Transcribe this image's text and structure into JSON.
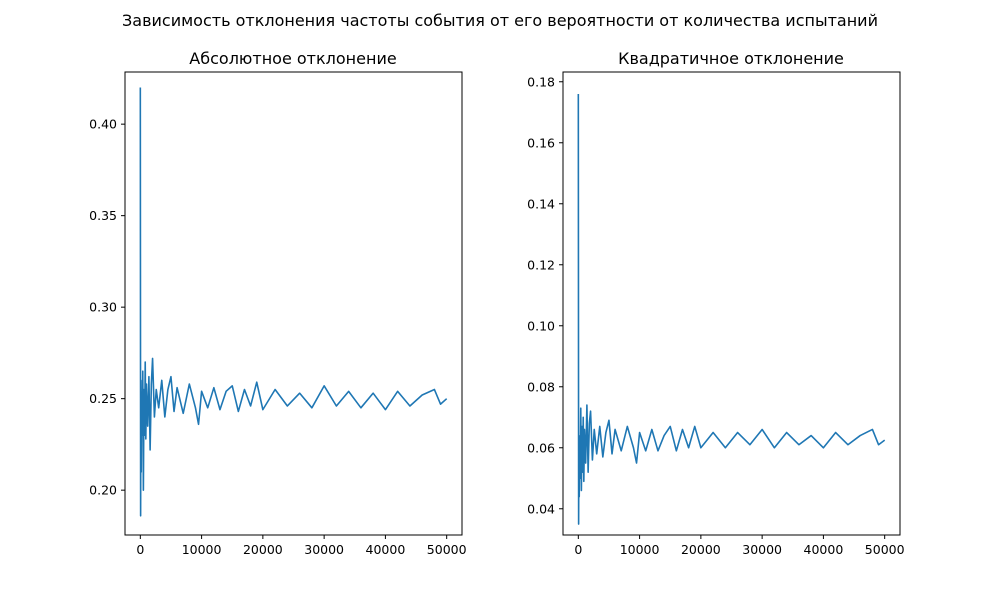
{
  "figure": {
    "title": "Зависимость отклонения частоты события от его вероятности от количества испытаний",
    "colors": {
      "series": "#1f77b4",
      "axes": "#000000",
      "background": "#ffffff"
    }
  },
  "chart_data": [
    {
      "type": "line",
      "title": "Абсолютное отклонение",
      "xlabel": "",
      "ylabel": "",
      "xlim": [
        -2500,
        52500
      ],
      "ylim": [
        0.1755,
        0.4285
      ],
      "x_ticks": [
        0,
        10000,
        20000,
        30000,
        40000,
        50000
      ],
      "y_ticks": [
        0.2,
        0.25,
        0.3,
        0.35,
        0.4
      ],
      "x_tick_labels": [
        "0",
        "10000",
        "20000",
        "30000",
        "40000",
        "50000"
      ],
      "y_tick_labels": [
        "0.20",
        "0.25",
        "0.30",
        "0.35",
        "0.40"
      ],
      "grid": false,
      "series": [
        {
          "color": "#1f77b4",
          "x": [
            0,
            50,
            100,
            150,
            200,
            300,
            400,
            500,
            600,
            700,
            800,
            900,
            1000,
            1200,
            1400,
            1600,
            1800,
            2000,
            2300,
            2600,
            3000,
            3500,
            4000,
            4500,
            5000,
            5500,
            6000,
            7000,
            8000,
            9000,
            9500,
            10000,
            11000,
            12000,
            13000,
            14000,
            15000,
            16000,
            17000,
            18000,
            19000,
            20000,
            22000,
            24000,
            26000,
            28000,
            30000,
            32000,
            34000,
            36000,
            38000,
            40000,
            42000,
            44000,
            46000,
            48000,
            49000,
            50000
          ],
          "values": [
            0.42,
            0.186,
            0.26,
            0.21,
            0.245,
            0.23,
            0.265,
            0.2,
            0.255,
            0.23,
            0.27,
            0.228,
            0.258,
            0.235,
            0.262,
            0.222,
            0.258,
            0.272,
            0.24,
            0.255,
            0.245,
            0.26,
            0.24,
            0.255,
            0.262,
            0.243,
            0.256,
            0.242,
            0.258,
            0.245,
            0.236,
            0.254,
            0.245,
            0.256,
            0.244,
            0.254,
            0.257,
            0.243,
            0.255,
            0.246,
            0.259,
            0.244,
            0.255,
            0.246,
            0.253,
            0.245,
            0.257,
            0.246,
            0.254,
            0.245,
            0.253,
            0.244,
            0.254,
            0.246,
            0.252,
            0.255,
            0.247,
            0.25
          ]
        }
      ]
    },
    {
      "type": "line",
      "title": "Квадратичное отклонение",
      "xlabel": "",
      "ylabel": "",
      "xlim": [
        -2500,
        52500
      ],
      "ylim": [
        0.0314,
        0.1832
      ],
      "x_ticks": [
        0,
        10000,
        20000,
        30000,
        40000,
        50000
      ],
      "y_ticks": [
        0.04,
        0.06,
        0.08,
        0.1,
        0.12,
        0.14,
        0.16,
        0.18
      ],
      "x_tick_labels": [
        "0",
        "10000",
        "20000",
        "30000",
        "40000",
        "50000"
      ],
      "y_tick_labels": [
        "0.04",
        "0.06",
        "0.08",
        "0.10",
        "0.12",
        "0.14",
        "0.16",
        "0.18"
      ],
      "grid": false,
      "series": [
        {
          "color": "#1f77b4",
          "x": [
            0,
            50,
            100,
            150,
            200,
            300,
            400,
            500,
            600,
            700,
            800,
            900,
            1000,
            1200,
            1400,
            1600,
            1800,
            2000,
            2300,
            2600,
            3000,
            3500,
            4000,
            4500,
            5000,
            5500,
            6000,
            7000,
            8000,
            9000,
            9500,
            10000,
            11000,
            12000,
            13000,
            14000,
            15000,
            16000,
            17000,
            18000,
            19000,
            20000,
            22000,
            24000,
            26000,
            28000,
            30000,
            32000,
            34000,
            36000,
            38000,
            40000,
            42000,
            44000,
            46000,
            48000,
            49000,
            50000
          ],
          "values": [
            0.176,
            0.035,
            0.064,
            0.044,
            0.06,
            0.05,
            0.073,
            0.046,
            0.067,
            0.052,
            0.07,
            0.049,
            0.066,
            0.055,
            0.074,
            0.052,
            0.068,
            0.072,
            0.056,
            0.066,
            0.058,
            0.067,
            0.057,
            0.065,
            0.069,
            0.058,
            0.066,
            0.059,
            0.067,
            0.06,
            0.055,
            0.065,
            0.059,
            0.066,
            0.059,
            0.064,
            0.067,
            0.059,
            0.066,
            0.06,
            0.067,
            0.06,
            0.065,
            0.06,
            0.065,
            0.061,
            0.066,
            0.06,
            0.065,
            0.061,
            0.064,
            0.06,
            0.065,
            0.061,
            0.064,
            0.066,
            0.061,
            0.0625
          ]
        }
      ]
    }
  ]
}
